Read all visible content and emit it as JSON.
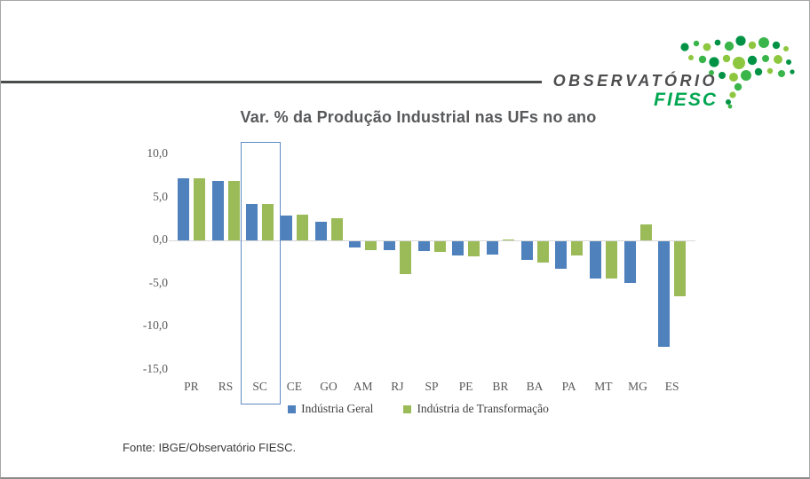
{
  "header": {
    "brand_top": "OBSERVATÓRIO",
    "brand_bottom": "FIESC",
    "brand_top_color": "#4D4D4F",
    "brand_green": "#00A651",
    "logo_icon": "sc-map-dots"
  },
  "chart_data": {
    "type": "bar",
    "title": "Var. % da Produção Industrial nas UFs no ano",
    "categories": [
      "PR",
      "RS",
      "SC",
      "CE",
      "GO",
      "AM",
      "RJ",
      "SP",
      "PE",
      "BR",
      "BA",
      "PA",
      "MT",
      "MG",
      "ES"
    ],
    "series": [
      {
        "name": "Indústria Geral",
        "color": "#4F81BD",
        "values": [
          7.2,
          6.9,
          4.2,
          2.9,
          2.2,
          -0.7,
          -1.0,
          -1.1,
          -1.7,
          -1.5,
          -2.2,
          -3.2,
          -4.3,
          -4.8,
          -12.3
        ]
      },
      {
        "name": "Indústria de Transformação",
        "color": "#9BBB59",
        "values": [
          7.2,
          6.9,
          4.2,
          3.0,
          2.6,
          -1.0,
          -3.8,
          -1.2,
          -1.8,
          0.1,
          -2.5,
          -1.6,
          -4.3,
          1.9,
          -6.4
        ]
      }
    ],
    "ylim": [
      -15,
      10
    ],
    "yticks": [
      10,
      5,
      0,
      -5,
      -10,
      -15
    ],
    "ytick_labels": [
      "10,0",
      "5,0",
      "0,0",
      "-5,0",
      "-10,0",
      "-15,0"
    ],
    "grid": false,
    "legend_position": "bottom",
    "highlight_category": "SC",
    "axis_label_color": "#595959",
    "title_color": "#58595B",
    "zero_line_color": "#D9D9D9",
    "highlight_border_color": "#5E8BC4"
  },
  "footer": {
    "source": "Fonte: IBGE/Observatório FIESC."
  }
}
